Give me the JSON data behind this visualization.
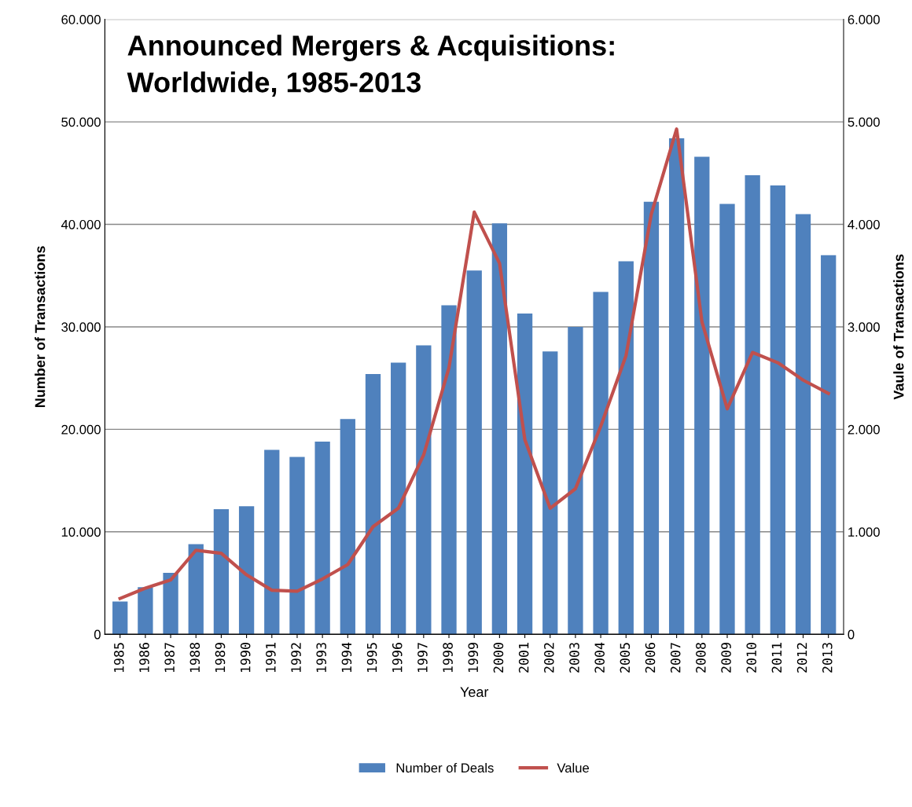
{
  "chart_data": {
    "type": "bar",
    "title": "Announced Mergers & Acquisitions:\nWorldwide, 1985-2013",
    "xlabel": "Year",
    "ylabel": "Number of Transactions",
    "y2label": "Vaule of Transactions",
    "categories": [
      "1985",
      "1986",
      "1987",
      "1988",
      "1989",
      "1990",
      "1991",
      "1992",
      "1993",
      "1994",
      "1995",
      "1996",
      "1997",
      "1998",
      "1999",
      "2000",
      "2001",
      "2002",
      "2003",
      "2004",
      "2005",
      "2006",
      "2007",
      "2008",
      "2009",
      "2010",
      "2011",
      "2012",
      "2013"
    ],
    "series": [
      {
        "name": "Number of Deals",
        "color": "#4f81bd",
        "values": [
          3200,
          4600,
          6000,
          8800,
          12200,
          12500,
          18000,
          17300,
          18800,
          21000,
          25400,
          26500,
          28200,
          32100,
          35500,
          40100,
          31300,
          27600,
          30000,
          33400,
          36400,
          42200,
          48400,
          46600,
          42000,
          44800,
          43800,
          41000,
          37000
        ]
      },
      {
        "name": "Value",
        "type": "line",
        "axis": "y2",
        "color": "#c0504d",
        "values": [
          350,
          450,
          530,
          820,
          790,
          580,
          430,
          420,
          540,
          680,
          1050,
          1230,
          1750,
          2600,
          4120,
          3620,
          1900,
          1230,
          1420,
          2030,
          2720,
          4100,
          4930,
          3050,
          2200,
          2750,
          2650,
          2480,
          2350
        ]
      }
    ],
    "ylim": [
      0,
      60000
    ],
    "yticks": [
      0,
      {
        "value": 10000,
        "label": "10.000"
      },
      {
        "value": 20000,
        "label": "20.000"
      },
      {
        "value": 30000,
        "label": "30.000"
      },
      {
        "value": 40000,
        "label": "40.000"
      },
      {
        "value": 50000,
        "label": "50.000"
      },
      {
        "value": 60000,
        "label": "60.000"
      }
    ],
    "y2lim": [
      0,
      6000
    ],
    "y2ticks": [
      0,
      {
        "value": 1000,
        "label": "1.000"
      },
      {
        "value": 2000,
        "label": "2.000"
      },
      {
        "value": 3000,
        "label": "3.000"
      },
      {
        "value": 4000,
        "label": "4.000"
      },
      {
        "value": 5000,
        "label": "5.000"
      },
      {
        "value": 6000,
        "label": "6.000"
      }
    ],
    "grid": "y",
    "legend": "bottom",
    "marker": "none",
    "line_style": "solid"
  }
}
